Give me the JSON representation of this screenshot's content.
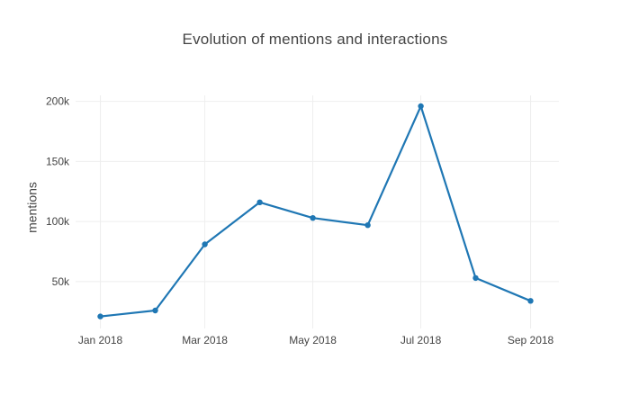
{
  "title": "Evolution of mentions and interactions",
  "chart_data": {
    "type": "line",
    "title": "Evolution of mentions and interactions",
    "xlabel": "",
    "ylabel": "mentions",
    "x": [
      "2018-01-01",
      "2018-02-01",
      "2018-03-01",
      "2018-04-01",
      "2018-05-01",
      "2018-06-01",
      "2018-07-01",
      "2018-08-01",
      "2018-09-01"
    ],
    "series": [
      {
        "name": "mentions",
        "values": [
          21000,
          26000,
          81000,
          116000,
          103000,
          97000,
          196000,
          53000,
          34000
        ]
      }
    ],
    "xticks": [
      {
        "date": "2018-01-01",
        "label": "Jan 2018"
      },
      {
        "date": "2018-03-01",
        "label": "Mar 2018"
      },
      {
        "date": "2018-05-01",
        "label": "May 2018"
      },
      {
        "date": "2018-07-01",
        "label": "Jul 2018"
      },
      {
        "date": "2018-09-01",
        "label": "Sep 2018"
      }
    ],
    "yticks": [
      {
        "value": 50000,
        "label": "50k"
      },
      {
        "value": 100000,
        "label": "100k"
      },
      {
        "value": 150000,
        "label": "150k"
      },
      {
        "value": 200000,
        "label": "200k"
      }
    ],
    "xlim": [
      "2017-12-18",
      "2018-09-17"
    ],
    "ylim": [
      11000,
      205000
    ],
    "grid": true,
    "legend": "none",
    "colors": {
      "line": "#1f77b4",
      "grid": "#eeeeee",
      "text": "#444444",
      "background": "#ffffff"
    },
    "marker_radius": 3.2,
    "line_width": 2.2
  }
}
